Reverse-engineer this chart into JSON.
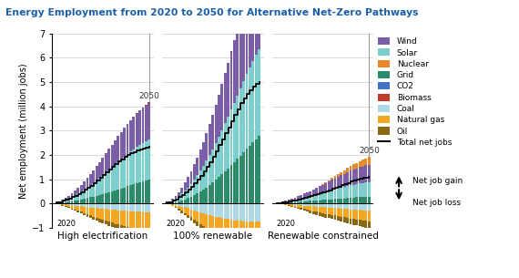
{
  "title": "Energy Employment from 2020 to 2050 for Alternative Net-Zero Pathways",
  "ylabel": "Net employment (million jobs)",
  "ylim": [
    -1,
    7
  ],
  "yticks": [
    -1,
    0,
    1,
    2,
    3,
    4,
    5,
    6,
    7
  ],
  "scenarios": [
    "High electrification",
    "100% renewable",
    "Renewable constrained"
  ],
  "n_bars": 31,
  "colors": {
    "Wind": "#7B5EA7",
    "Solar": "#7ECECE",
    "Nuclear": "#E8892A",
    "Grid": "#2E8B6A",
    "CO2": "#4472C4",
    "Biomass": "#C0392B",
    "Coal": "#ADD8E6",
    "Natural gas": "#F5A623",
    "Oil": "#8B6914",
    "Total net jobs": "#000000"
  },
  "legend_order": [
    "Wind",
    "Solar",
    "Nuclear",
    "Grid",
    "CO2",
    "Biomass",
    "Coal",
    "Natural gas",
    "Oil",
    "Total net jobs"
  ],
  "pos_keys": [
    "Grid",
    "Solar",
    "Wind",
    "Nuclear",
    "CO2",
    "Biomass"
  ],
  "neg_keys": [
    "Coal",
    "Natural gas",
    "Oil"
  ],
  "s1_pos_Grid": [
    0.01,
    0.02,
    0.04,
    0.06,
    0.08,
    0.1,
    0.12,
    0.14,
    0.17,
    0.2,
    0.23,
    0.26,
    0.29,
    0.32,
    0.36,
    0.39,
    0.43,
    0.47,
    0.51,
    0.55,
    0.59,
    0.63,
    0.67,
    0.71,
    0.75,
    0.79,
    0.83,
    0.87,
    0.91,
    0.95,
    0.99
  ],
  "s1_pos_Solar": [
    0.02,
    0.04,
    0.07,
    0.1,
    0.14,
    0.18,
    0.22,
    0.27,
    0.32,
    0.37,
    0.43,
    0.49,
    0.55,
    0.62,
    0.69,
    0.76,
    0.83,
    0.91,
    0.98,
    1.06,
    1.13,
    1.2,
    1.27,
    1.33,
    1.39,
    1.44,
    1.49,
    1.53,
    1.57,
    1.6,
    1.63
  ],
  "s1_pos_Wind": [
    0.01,
    0.03,
    0.05,
    0.08,
    0.11,
    0.15,
    0.19,
    0.24,
    0.29,
    0.35,
    0.41,
    0.47,
    0.53,
    0.6,
    0.67,
    0.73,
    0.8,
    0.87,
    0.93,
    1.0,
    1.06,
    1.12,
    1.18,
    1.23,
    1.28,
    1.33,
    1.38,
    1.42,
    1.46,
    1.49,
    1.53
  ],
  "s1_pos_Nuclear": [
    0.0,
    0.0,
    0.0,
    0.0,
    0.0,
    0.0,
    0.0,
    0.0,
    0.0,
    0.0,
    0.0,
    0.0,
    0.0,
    0.0,
    0.0,
    0.0,
    0.0,
    0.0,
    0.0,
    0.0,
    0.0,
    0.0,
    0.0,
    0.0,
    0.0,
    0.0,
    0.0,
    0.0,
    0.0,
    0.0,
    0.0
  ],
  "s1_pos_CO2": [
    0.0,
    0.0,
    0.0,
    0.0,
    0.0,
    0.0,
    0.0,
    0.0,
    0.0,
    0.0,
    0.0,
    0.0,
    0.0,
    0.0,
    0.0,
    0.0,
    0.0,
    0.0,
    0.0,
    0.0,
    0.0,
    0.0,
    0.0,
    0.0,
    0.0,
    0.0,
    0.0,
    0.0,
    0.0,
    0.0,
    0.0
  ],
  "s1_pos_Biomass": [
    0.0,
    0.0,
    0.0,
    0.0,
    0.0,
    0.0,
    0.0,
    0.0,
    0.0,
    0.0,
    0.0,
    0.0,
    0.0,
    0.0,
    0.0,
    0.0,
    0.0,
    0.0,
    0.0,
    0.0,
    0.0,
    0.005,
    0.01,
    0.01,
    0.01,
    0.01,
    0.01,
    0.01,
    0.01,
    0.01,
    0.01
  ],
  "s1_neg_Coal": [
    0.0,
    -0.01,
    -0.02,
    -0.04,
    -0.05,
    -0.07,
    -0.08,
    -0.1,
    -0.11,
    -0.13,
    -0.14,
    -0.16,
    -0.17,
    -0.19,
    -0.2,
    -0.21,
    -0.22,
    -0.24,
    -0.25,
    -0.26,
    -0.27,
    -0.28,
    -0.29,
    -0.3,
    -0.31,
    -0.32,
    -0.33,
    -0.34,
    -0.35,
    -0.36,
    -0.37
  ],
  "s1_neg_Natgas": [
    0.0,
    -0.02,
    -0.04,
    -0.07,
    -0.1,
    -0.13,
    -0.16,
    -0.19,
    -0.22,
    -0.26,
    -0.29,
    -0.32,
    -0.36,
    -0.39,
    -0.42,
    -0.45,
    -0.48,
    -0.51,
    -0.54,
    -0.57,
    -0.59,
    -0.61,
    -0.63,
    -0.65,
    -0.67,
    -0.69,
    -0.7,
    -0.72,
    -0.73,
    -0.74,
    -0.75
  ],
  "s1_neg_Oil": [
    0.0,
    -0.01,
    -0.02,
    -0.03,
    -0.04,
    -0.05,
    -0.06,
    -0.07,
    -0.08,
    -0.09,
    -0.1,
    -0.11,
    -0.12,
    -0.13,
    -0.14,
    -0.15,
    -0.16,
    -0.17,
    -0.18,
    -0.19,
    -0.2,
    -0.21,
    -0.22,
    -0.23,
    -0.24,
    -0.25,
    -0.26,
    -0.27,
    -0.28,
    -0.29,
    -0.3
  ],
  "s1_total": [
    0.04,
    0.07,
    0.11,
    0.16,
    0.21,
    0.27,
    0.33,
    0.4,
    0.48,
    0.56,
    0.65,
    0.74,
    0.83,
    0.94,
    1.05,
    1.16,
    1.28,
    1.4,
    1.52,
    1.63,
    1.73,
    1.83,
    1.92,
    2.0,
    2.07,
    2.13,
    2.19,
    2.24,
    2.28,
    2.31,
    2.33
  ],
  "s2_pos_Grid": [
    0.01,
    0.02,
    0.04,
    0.07,
    0.1,
    0.14,
    0.18,
    0.23,
    0.29,
    0.35,
    0.42,
    0.5,
    0.58,
    0.67,
    0.77,
    0.87,
    0.98,
    1.09,
    1.21,
    1.33,
    1.45,
    1.58,
    1.71,
    1.85,
    1.98,
    2.11,
    2.25,
    2.38,
    2.51,
    2.64,
    2.77
  ],
  "s2_pos_Solar": [
    0.02,
    0.05,
    0.09,
    0.14,
    0.2,
    0.27,
    0.35,
    0.44,
    0.53,
    0.63,
    0.74,
    0.85,
    0.97,
    1.1,
    1.23,
    1.37,
    1.51,
    1.66,
    1.81,
    1.97,
    2.12,
    2.28,
    2.44,
    2.6,
    2.76,
    2.92,
    3.07,
    3.21,
    3.35,
    3.47,
    3.58
  ],
  "s2_pos_Wind": [
    0.01,
    0.03,
    0.07,
    0.12,
    0.18,
    0.25,
    0.33,
    0.42,
    0.52,
    0.63,
    0.74,
    0.86,
    0.99,
    1.13,
    1.27,
    1.42,
    1.57,
    1.73,
    1.89,
    2.06,
    2.22,
    2.39,
    2.56,
    2.73,
    2.9,
    3.06,
    3.22,
    3.37,
    3.52,
    3.65,
    3.77
  ],
  "s2_pos_Nuclear": [
    0.0,
    0.0,
    0.0,
    0.0,
    0.0,
    0.0,
    0.0,
    0.0,
    0.0,
    0.0,
    0.0,
    0.0,
    0.0,
    0.0,
    0.0,
    0.0,
    0.0,
    0.0,
    0.0,
    0.0,
    0.0,
    0.0,
    0.0,
    0.0,
    0.0,
    0.0,
    0.0,
    0.0,
    0.0,
    0.0,
    0.0
  ],
  "s2_pos_CO2": [
    0.0,
    0.0,
    0.0,
    0.0,
    0.0,
    0.0,
    0.0,
    0.0,
    0.0,
    0.0,
    0.0,
    0.0,
    0.0,
    0.0,
    0.0,
    0.0,
    0.0,
    0.0,
    0.0,
    0.0,
    0.0,
    0.0,
    0.0,
    0.0,
    0.0,
    0.0,
    0.0,
    0.0,
    0.0,
    0.0,
    0.0
  ],
  "s2_pos_Biomass": [
    0.0,
    0.0,
    0.0,
    0.0,
    0.0,
    0.0,
    0.0,
    0.0,
    0.0,
    0.0,
    0.0,
    0.0,
    0.0,
    0.0,
    0.0,
    0.0,
    0.0,
    0.0,
    0.0,
    0.0,
    0.0,
    0.01,
    0.02,
    0.03,
    0.04,
    0.05,
    0.05,
    0.05,
    0.05,
    0.05,
    0.05
  ],
  "s2_neg_Coal": [
    0.0,
    -0.01,
    -0.03,
    -0.06,
    -0.09,
    -0.12,
    -0.15,
    -0.19,
    -0.23,
    -0.27,
    -0.31,
    -0.35,
    -0.39,
    -0.43,
    -0.47,
    -0.5,
    -0.53,
    -0.56,
    -0.59,
    -0.62,
    -0.64,
    -0.66,
    -0.68,
    -0.7,
    -0.71,
    -0.72,
    -0.73,
    -0.74,
    -0.75,
    -0.75,
    -0.75
  ],
  "s2_neg_Natgas": [
    0.0,
    -0.02,
    -0.05,
    -0.09,
    -0.13,
    -0.18,
    -0.23,
    -0.28,
    -0.33,
    -0.38,
    -0.43,
    -0.48,
    -0.53,
    -0.58,
    -0.62,
    -0.66,
    -0.7,
    -0.73,
    -0.76,
    -0.79,
    -0.82,
    -0.84,
    -0.86,
    -0.88,
    -0.89,
    -0.9,
    -0.91,
    -0.92,
    -0.93,
    -0.93,
    -0.93
  ],
  "s2_neg_Oil": [
    0.0,
    -0.01,
    -0.02,
    -0.04,
    -0.06,
    -0.08,
    -0.1,
    -0.13,
    -0.15,
    -0.17,
    -0.2,
    -0.22,
    -0.24,
    -0.27,
    -0.29,
    -0.31,
    -0.33,
    -0.35,
    -0.37,
    -0.39,
    -0.41,
    -0.43,
    -0.45,
    -0.47,
    -0.49,
    -0.5,
    -0.52,
    -0.54,
    -0.56,
    -0.57,
    -0.58
  ],
  "s2_total": [
    0.04,
    0.07,
    0.12,
    0.18,
    0.26,
    0.35,
    0.46,
    0.57,
    0.7,
    0.84,
    0.99,
    1.15,
    1.33,
    1.52,
    1.72,
    1.93,
    2.16,
    2.4,
    2.64,
    2.9,
    3.14,
    3.4,
    3.65,
    3.89,
    4.12,
    4.33,
    4.52,
    4.68,
    4.83,
    4.93,
    5.0
  ],
  "s3_pos_Grid": [
    0.01,
    0.01,
    0.02,
    0.03,
    0.04,
    0.05,
    0.06,
    0.07,
    0.08,
    0.09,
    0.1,
    0.11,
    0.12,
    0.13,
    0.14,
    0.15,
    0.16,
    0.17,
    0.18,
    0.19,
    0.2,
    0.21,
    0.22,
    0.23,
    0.24,
    0.25,
    0.26,
    0.27,
    0.27,
    0.28,
    0.28
  ],
  "s3_pos_Solar": [
    0.01,
    0.02,
    0.03,
    0.04,
    0.06,
    0.07,
    0.09,
    0.11,
    0.13,
    0.15,
    0.17,
    0.19,
    0.22,
    0.24,
    0.27,
    0.29,
    0.32,
    0.34,
    0.37,
    0.39,
    0.42,
    0.44,
    0.46,
    0.49,
    0.51,
    0.53,
    0.55,
    0.57,
    0.58,
    0.6,
    0.61
  ],
  "s3_pos_Wind": [
    0.01,
    0.02,
    0.03,
    0.04,
    0.06,
    0.08,
    0.1,
    0.12,
    0.14,
    0.17,
    0.19,
    0.22,
    0.25,
    0.28,
    0.31,
    0.34,
    0.37,
    0.4,
    0.43,
    0.46,
    0.49,
    0.52,
    0.55,
    0.57,
    0.6,
    0.62,
    0.64,
    0.66,
    0.68,
    0.7,
    0.71
  ],
  "s3_pos_Nuclear": [
    0.0,
    0.0,
    0.0,
    0.0,
    0.0,
    0.0,
    0.0,
    0.0,
    0.0,
    0.0,
    0.0,
    0.0,
    0.0,
    0.0,
    0.01,
    0.02,
    0.03,
    0.05,
    0.07,
    0.09,
    0.11,
    0.13,
    0.15,
    0.17,
    0.19,
    0.21,
    0.23,
    0.25,
    0.27,
    0.29,
    0.31
  ],
  "s3_pos_CO2": [
    0.0,
    0.0,
    0.0,
    0.0,
    0.0,
    0.0,
    0.0,
    0.0,
    0.0,
    0.0,
    0.0,
    0.0,
    0.0,
    0.0,
    0.0,
    0.0,
    0.0,
    0.0,
    0.0,
    0.0,
    0.0,
    0.0,
    0.0,
    0.0,
    0.0,
    0.0,
    0.0,
    0.0,
    0.0,
    0.0,
    0.0
  ],
  "s3_pos_Biomass": [
    0.0,
    0.0,
    0.0,
    0.0,
    0.0,
    0.0,
    0.0,
    0.0,
    0.0,
    0.0,
    0.0,
    0.0,
    0.0,
    0.0,
    0.0,
    0.0,
    0.0,
    0.0,
    0.0,
    0.0,
    0.0,
    0.0,
    0.0,
    0.0,
    0.0,
    0.0,
    0.0,
    0.0,
    0.0,
    0.0,
    0.0
  ],
  "s3_neg_Coal": [
    0.0,
    -0.01,
    -0.01,
    -0.02,
    -0.03,
    -0.04,
    -0.05,
    -0.06,
    -0.07,
    -0.08,
    -0.09,
    -0.1,
    -0.11,
    -0.12,
    -0.13,
    -0.14,
    -0.15,
    -0.16,
    -0.17,
    -0.18,
    -0.19,
    -0.2,
    -0.21,
    -0.22,
    -0.23,
    -0.24,
    -0.25,
    -0.26,
    -0.27,
    -0.28,
    -0.29
  ],
  "s3_neg_Natgas": [
    0.0,
    -0.01,
    -0.02,
    -0.03,
    -0.04,
    -0.06,
    -0.08,
    -0.1,
    -0.12,
    -0.14,
    -0.16,
    -0.18,
    -0.2,
    -0.22,
    -0.24,
    -0.25,
    -0.27,
    -0.28,
    -0.3,
    -0.31,
    -0.33,
    -0.34,
    -0.35,
    -0.37,
    -0.38,
    -0.39,
    -0.4,
    -0.41,
    -0.42,
    -0.43,
    -0.44
  ],
  "s3_neg_Oil": [
    0.0,
    -0.01,
    -0.01,
    -0.02,
    -0.03,
    -0.04,
    -0.05,
    -0.06,
    -0.07,
    -0.08,
    -0.09,
    -0.1,
    -0.11,
    -0.12,
    -0.13,
    -0.14,
    -0.15,
    -0.16,
    -0.17,
    -0.18,
    -0.19,
    -0.2,
    -0.21,
    -0.22,
    -0.23,
    -0.24,
    -0.25,
    -0.26,
    -0.27,
    -0.28,
    -0.29
  ],
  "s3_total": [
    0.02,
    0.03,
    0.05,
    0.07,
    0.09,
    0.12,
    0.14,
    0.17,
    0.2,
    0.23,
    0.27,
    0.3,
    0.34,
    0.38,
    0.42,
    0.46,
    0.51,
    0.55,
    0.6,
    0.65,
    0.7,
    0.75,
    0.8,
    0.85,
    0.9,
    0.94,
    0.98,
    1.02,
    1.05,
    1.07,
    1.09
  ]
}
